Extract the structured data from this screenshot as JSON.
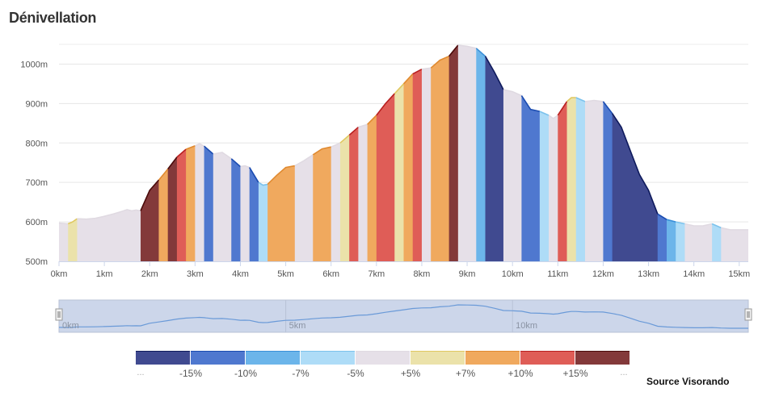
{
  "title": "Dénivellation",
  "source": "Source Visorando",
  "chart_data": {
    "type": "area",
    "title": "Dénivellation",
    "xlabel": "",
    "ylabel": "",
    "xlim": [
      0,
      15.2
    ],
    "ylim": [
      500,
      1050
    ],
    "yticks": [
      500,
      600,
      700,
      800,
      900,
      1000
    ],
    "ytick_labels": [
      "500m",
      "600m",
      "700m",
      "800m",
      "900m",
      "1000m"
    ],
    "xticks": [
      0,
      1,
      2,
      3,
      4,
      5,
      6,
      7,
      8,
      9,
      10,
      11,
      12,
      13,
      14,
      15
    ],
    "xtick_labels": [
      "0km",
      "1km",
      "2km",
      "3km",
      "4km",
      "5km",
      "6km",
      "7km",
      "8km",
      "9km",
      "10km",
      "11km",
      "12km",
      "13km",
      "14km",
      "15km"
    ],
    "grid": true,
    "x_km": [
      0,
      0.2,
      0.3,
      0.4,
      0.6,
      0.8,
      1.0,
      1.2,
      1.4,
      1.5,
      1.6,
      1.7,
      1.8,
      2.0,
      2.2,
      2.4,
      2.6,
      2.8,
      3.0,
      3.1,
      3.2,
      3.4,
      3.6,
      3.8,
      4.0,
      4.1,
      4.2,
      4.4,
      4.5,
      4.6,
      4.8,
      5.0,
      5.2,
      5.4,
      5.6,
      5.8,
      6.0,
      6.2,
      6.4,
      6.6,
      6.8,
      7.0,
      7.2,
      7.4,
      7.6,
      7.8,
      8.0,
      8.2,
      8.4,
      8.6,
      8.8,
      9.0,
      9.2,
      9.4,
      9.6,
      9.8,
      10.0,
      10.2,
      10.4,
      10.6,
      10.8,
      10.9,
      11.0,
      11.2,
      11.3,
      11.4,
      11.6,
      11.8,
      12.0,
      12.2,
      12.4,
      12.6,
      12.8,
      13.0,
      13.2,
      13.4,
      13.6,
      13.8,
      14.0,
      14.2,
      14.4,
      14.6,
      14.8,
      15.0,
      15.2
    ],
    "elevation_m": [
      597,
      595,
      600,
      608,
      607,
      609,
      614,
      620,
      627,
      631,
      628,
      630,
      628,
      680,
      706,
      734,
      764,
      784,
      793,
      798,
      792,
      772,
      776,
      760,
      740,
      742,
      738,
      700,
      693,
      695,
      718,
      738,
      742,
      755,
      770,
      785,
      790,
      800,
      820,
      840,
      847,
      870,
      900,
      925,
      950,
      975,
      987,
      990,
      1010,
      1020,
      1048,
      1045,
      1040,
      1020,
      980,
      935,
      930,
      920,
      885,
      880,
      870,
      862,
      870,
      905,
      915,
      915,
      905,
      908,
      905,
      875,
      840,
      780,
      720,
      680,
      620,
      606,
      600,
      595,
      590,
      590,
      595,
      585,
      580,
      580,
      580
    ],
    "slope_classes": [
      "< -15%",
      "-15% to -10%",
      "-10% to -7%",
      "-7% to -5%",
      "-5% to +5%",
      "+5% to +7%",
      "+7% to +10%",
      "+10% to +15%",
      "> +15%"
    ],
    "segments": [
      {
        "from": 0.0,
        "to": 0.2,
        "class": 4
      },
      {
        "from": 0.2,
        "to": 0.4,
        "class": 5
      },
      {
        "from": 0.4,
        "to": 1.8,
        "class": 4
      },
      {
        "from": 1.8,
        "to": 2.2,
        "class": 8
      },
      {
        "from": 2.2,
        "to": 2.4,
        "class": 6
      },
      {
        "from": 2.4,
        "to": 2.6,
        "class": 8
      },
      {
        "from": 2.6,
        "to": 2.8,
        "class": 7
      },
      {
        "from": 2.8,
        "to": 3.0,
        "class": 6
      },
      {
        "from": 3.0,
        "to": 3.2,
        "class": 4
      },
      {
        "from": 3.2,
        "to": 3.4,
        "class": 1
      },
      {
        "from": 3.4,
        "to": 3.8,
        "class": 4
      },
      {
        "from": 3.8,
        "to": 4.0,
        "class": 1
      },
      {
        "from": 4.0,
        "to": 4.2,
        "class": 4
      },
      {
        "from": 4.2,
        "to": 4.4,
        "class": 1
      },
      {
        "from": 4.4,
        "to": 4.6,
        "class": 3
      },
      {
        "from": 4.6,
        "to": 5.2,
        "class": 6
      },
      {
        "from": 5.2,
        "to": 5.6,
        "class": 4
      },
      {
        "from": 5.6,
        "to": 6.0,
        "class": 6
      },
      {
        "from": 6.0,
        "to": 6.2,
        "class": 4
      },
      {
        "from": 6.2,
        "to": 6.4,
        "class": 5
      },
      {
        "from": 6.4,
        "to": 6.6,
        "class": 7
      },
      {
        "from": 6.6,
        "to": 6.8,
        "class": 4
      },
      {
        "from": 6.8,
        "to": 7.0,
        "class": 6
      },
      {
        "from": 7.0,
        "to": 7.4,
        "class": 7
      },
      {
        "from": 7.4,
        "to": 7.6,
        "class": 5
      },
      {
        "from": 7.6,
        "to": 7.8,
        "class": 6
      },
      {
        "from": 7.8,
        "to": 8.0,
        "class": 7
      },
      {
        "from": 8.0,
        "to": 8.2,
        "class": 4
      },
      {
        "from": 8.2,
        "to": 8.6,
        "class": 6
      },
      {
        "from": 8.6,
        "to": 8.8,
        "class": 8
      },
      {
        "from": 8.8,
        "to": 9.2,
        "class": 4
      },
      {
        "from": 9.2,
        "to": 9.4,
        "class": 2
      },
      {
        "from": 9.4,
        "to": 9.8,
        "class": 0
      },
      {
        "from": 9.8,
        "to": 10.2,
        "class": 4
      },
      {
        "from": 10.2,
        "to": 10.6,
        "class": 1
      },
      {
        "from": 10.6,
        "to": 10.8,
        "class": 3
      },
      {
        "from": 10.8,
        "to": 11.0,
        "class": 4
      },
      {
        "from": 11.0,
        "to": 11.2,
        "class": 7
      },
      {
        "from": 11.2,
        "to": 11.4,
        "class": 5
      },
      {
        "from": 11.4,
        "to": 11.6,
        "class": 3
      },
      {
        "from": 11.6,
        "to": 12.0,
        "class": 4
      },
      {
        "from": 12.0,
        "to": 12.2,
        "class": 1
      },
      {
        "from": 12.2,
        "to": 13.2,
        "class": 0
      },
      {
        "from": 13.2,
        "to": 13.4,
        "class": 1
      },
      {
        "from": 13.4,
        "to": 13.6,
        "class": 2
      },
      {
        "from": 13.6,
        "to": 13.8,
        "class": 3
      },
      {
        "from": 13.8,
        "to": 14.4,
        "class": 4
      },
      {
        "from": 14.4,
        "to": 14.6,
        "class": 3
      },
      {
        "from": 14.6,
        "to": 15.2,
        "class": 4
      }
    ],
    "legend": {
      "position": "bottom",
      "colors": [
        "#404a90",
        "#4f78cf",
        "#6cb5ea",
        "#aedcf7",
        "#e6e0e8",
        "#ebe2aa",
        "#f0a95e",
        "#df5d57",
        "#83393a"
      ],
      "line_colors": [
        "#0e1a5c",
        "#1a4bb0",
        "#3a8fd8",
        "#7cc2ec",
        "#e0dae2",
        "#e0c860",
        "#e08a30",
        "#b82020",
        "#4a0a0a"
      ],
      "labels": [
        "...",
        "-15%",
        "-10%",
        "-7%",
        "-5%",
        "+5%",
        "+7%",
        "+10%",
        "+15%",
        "..."
      ]
    },
    "navigator": {
      "xtick_labels": [
        "0km",
        "5km",
        "10km"
      ],
      "xticks": [
        0,
        5,
        10
      ],
      "line_color": "#6a9ad8",
      "mask_color": "#ccd6ea",
      "handle_label": "||"
    }
  }
}
